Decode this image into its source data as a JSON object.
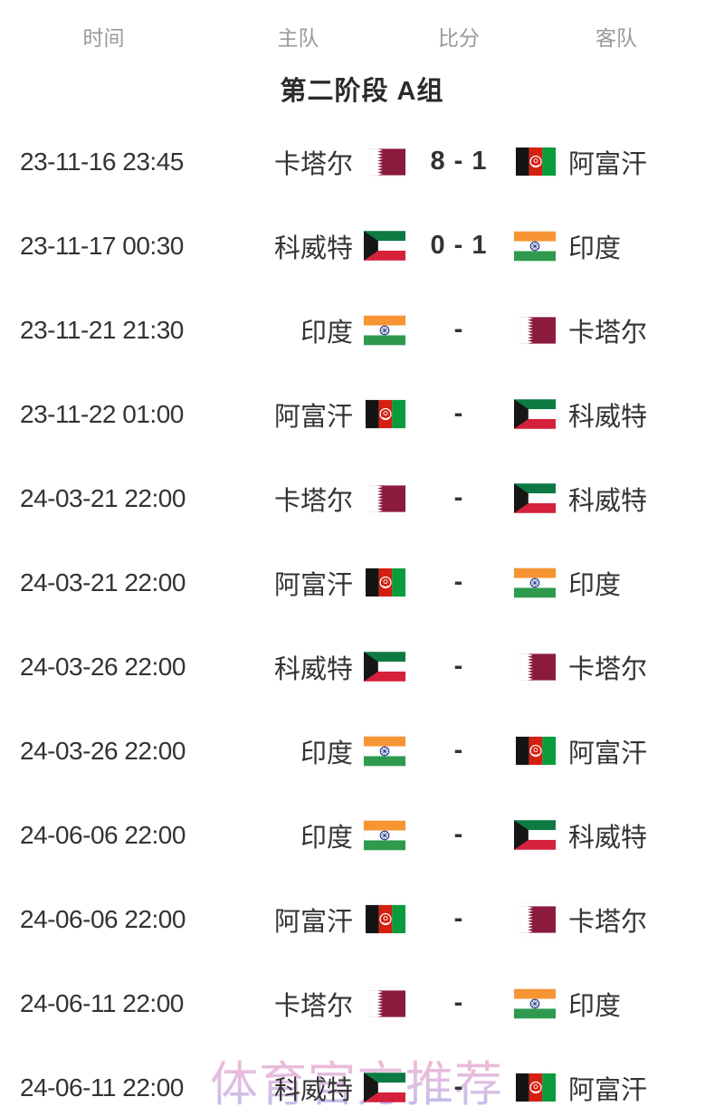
{
  "header": {
    "columns": [
      "时间",
      "主队",
      "比分",
      "客队"
    ]
  },
  "stage_title": "第二阶段 A组",
  "watermark": "体育官方推荐",
  "flags": {
    "qa": "qatar-flag",
    "af": "afghanistan-flag",
    "kw": "kuwait-flag",
    "in": "india-flag"
  },
  "flag_colors": {
    "qatar_maroon": "#8a1b3d",
    "white": "#ffffff",
    "afghan_black": "#141414",
    "afghan_red": "#d32011",
    "afghan_green": "#089c3c",
    "kuwait_green": "#0d7a44",
    "kuwait_red": "#d5213c",
    "kuwait_black": "#161616",
    "india_saffron": "#f79433",
    "india_green": "#2f9a4e",
    "india_navy": "#27408f"
  },
  "text_colors": {
    "row_text": "#333333",
    "header_gray": "#9a9a9a",
    "title_dark": "#2b2b2b",
    "watermark_pink": "#eeaecd",
    "watermark_purple": "#b2b2ec"
  },
  "matches": [
    {
      "time": "23-11-16 23:45",
      "home": "卡塔尔",
      "home_flag": "qa",
      "score": "8 - 1",
      "away": "阿富汗",
      "away_flag": "af"
    },
    {
      "time": "23-11-17 00:30",
      "home": "科威特",
      "home_flag": "kw",
      "score": "0 - 1",
      "away": "印度",
      "away_flag": "in"
    },
    {
      "time": "23-11-21 21:30",
      "home": "印度",
      "home_flag": "in",
      "score": "-",
      "away": "卡塔尔",
      "away_flag": "qa"
    },
    {
      "time": "23-11-22 01:00",
      "home": "阿富汗",
      "home_flag": "af",
      "score": "-",
      "away": "科威特",
      "away_flag": "kw"
    },
    {
      "time": "24-03-21 22:00",
      "home": "卡塔尔",
      "home_flag": "qa",
      "score": "-",
      "away": "科威特",
      "away_flag": "kw"
    },
    {
      "time": "24-03-21 22:00",
      "home": "阿富汗",
      "home_flag": "af",
      "score": "-",
      "away": "印度",
      "away_flag": "in"
    },
    {
      "time": "24-03-26 22:00",
      "home": "科威特",
      "home_flag": "kw",
      "score": "-",
      "away": "卡塔尔",
      "away_flag": "qa"
    },
    {
      "time": "24-03-26 22:00",
      "home": "印度",
      "home_flag": "in",
      "score": "-",
      "away": "阿富汗",
      "away_flag": "af"
    },
    {
      "time": "24-06-06 22:00",
      "home": "印度",
      "home_flag": "in",
      "score": "-",
      "away": "科威特",
      "away_flag": "kw"
    },
    {
      "time": "24-06-06 22:00",
      "home": "阿富汗",
      "home_flag": "af",
      "score": "-",
      "away": "卡塔尔",
      "away_flag": "qa"
    },
    {
      "time": "24-06-11 22:00",
      "home": "卡塔尔",
      "home_flag": "qa",
      "score": "-",
      "away": "印度",
      "away_flag": "in"
    },
    {
      "time": "24-06-11 22:00",
      "home": "科威特",
      "home_flag": "kw",
      "score": "-",
      "away": "阿富汗",
      "away_flag": "af"
    }
  ]
}
